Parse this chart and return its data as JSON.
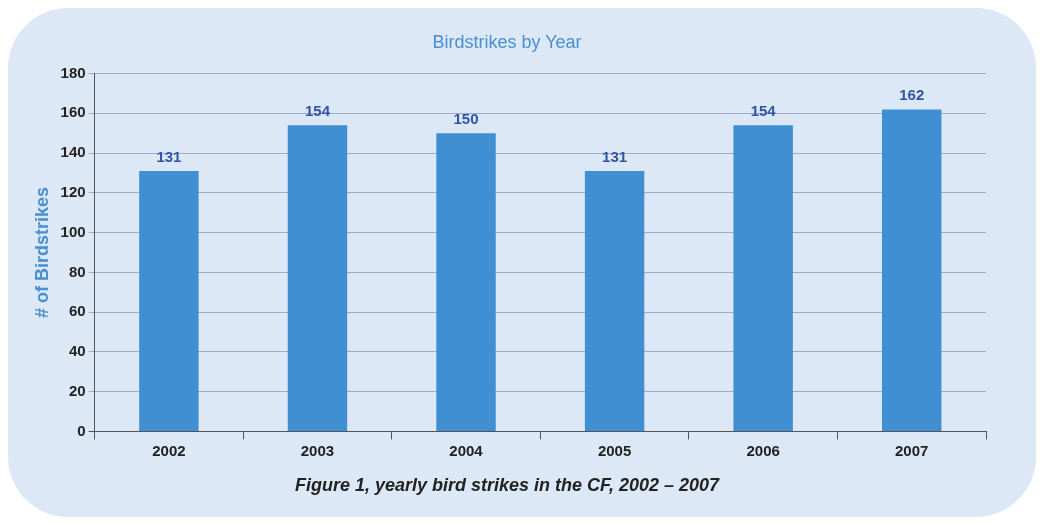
{
  "chart_data": {
    "type": "bar",
    "title": "Birdstrikes by Year",
    "ylabel": "# of Birdstrikes",
    "categories": [
      "2002",
      "2003",
      "2004",
      "2005",
      "2006",
      "2007"
    ],
    "values": [
      131,
      154,
      150,
      131,
      154,
      162
    ],
    "color": "#3f8fd2",
    "ylim": [
      0,
      180
    ],
    "yticks": [
      0,
      20,
      40,
      60,
      80,
      100,
      120,
      140,
      160,
      180
    ],
    "grid": "y",
    "data_labels": true,
    "legend": false,
    "annotations": [
      "Figure 1, yearly bird strikes in the CF, 2002 – 2007"
    ]
  }
}
